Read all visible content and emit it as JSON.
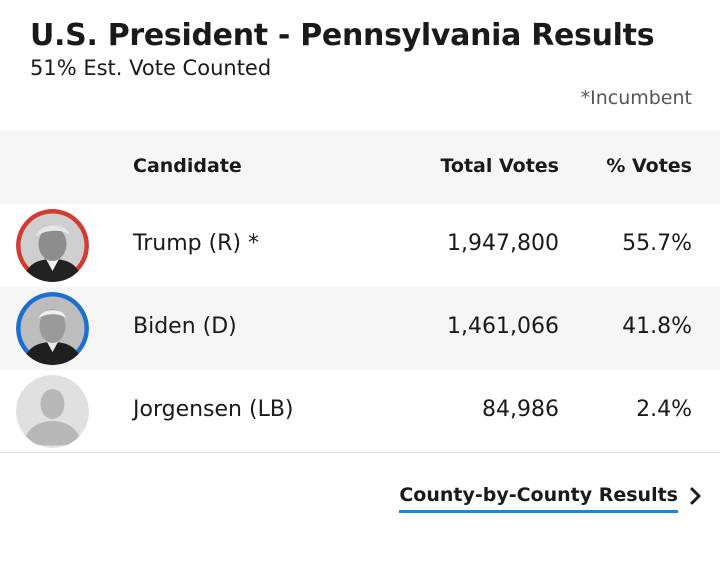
{
  "header": {
    "title": "U.S. President - Pennsylvania Results",
    "subtitle": "51% Est. Vote Counted",
    "incumbent_note": "*Incumbent"
  },
  "table": {
    "columns": {
      "candidate": "Candidate",
      "total_votes": "Total Votes",
      "pct_votes": "% Votes"
    },
    "rows": [
      {
        "name": "Trump (R) *",
        "votes": "1,947,800",
        "pct": "55.7%",
        "avatar": "trump-portrait",
        "ring_color": "#d23a33"
      },
      {
        "name": "Biden (D)",
        "votes": "1,461,066",
        "pct": "41.8%",
        "avatar": "biden-portrait",
        "ring_color": "#1d6fcf"
      },
      {
        "name": "Jorgensen (LB)",
        "votes": "84,986",
        "pct": "2.4%",
        "avatar": "placeholder-silhouette",
        "ring_color": "#d6d6d6"
      }
    ]
  },
  "footer": {
    "county_link": "County-by-County Results",
    "icon": "chevron-right-icon",
    "accent_color": "#1d86d8"
  }
}
